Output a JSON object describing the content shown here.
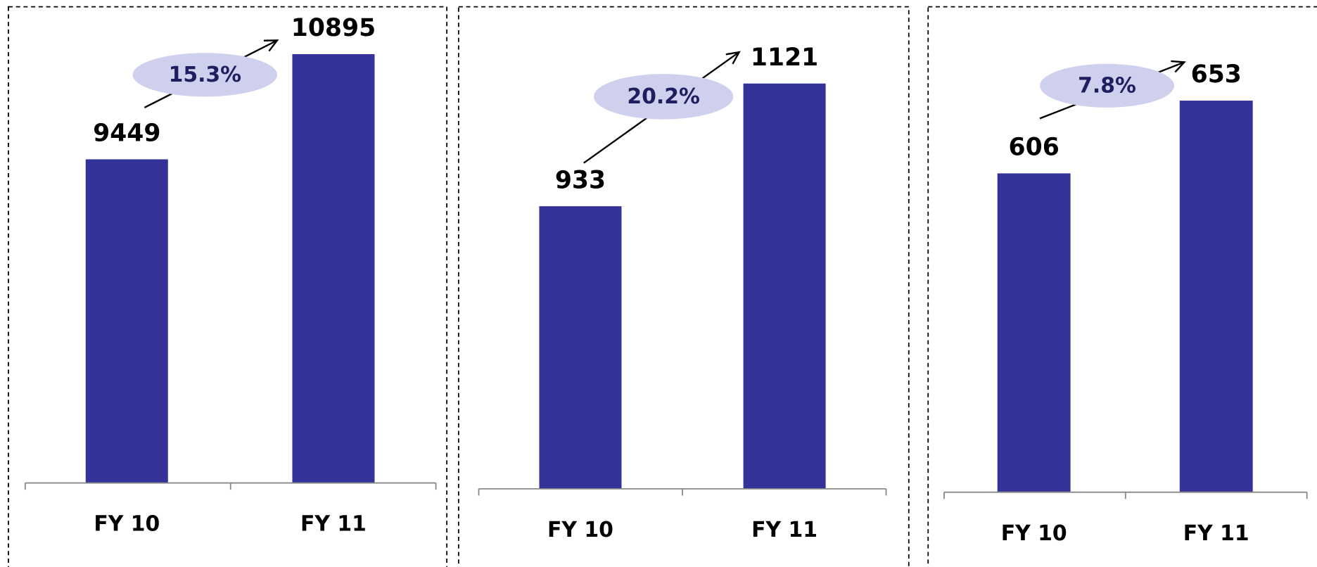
{
  "chart_data": [
    {
      "type": "bar",
      "categories": [
        "FY 10",
        "FY 11"
      ],
      "values": [
        9449,
        10895
      ],
      "color": "#333399",
      "annotation": "15.3%",
      "ylim": [
        5000,
        11500
      ]
    },
    {
      "type": "bar",
      "categories": [
        "FY 10",
        "FY 11"
      ],
      "values": [
        933,
        1121
      ],
      "color": "#333399",
      "annotation": "20.2%",
      "ylim": [
        500,
        1200
      ]
    },
    {
      "type": "bar",
      "categories": [
        "FY 10",
        "FY 11"
      ],
      "values": [
        606,
        653
      ],
      "color": "#333399",
      "annotation": "7.8%",
      "ylim": [
        400,
        680
      ]
    }
  ]
}
